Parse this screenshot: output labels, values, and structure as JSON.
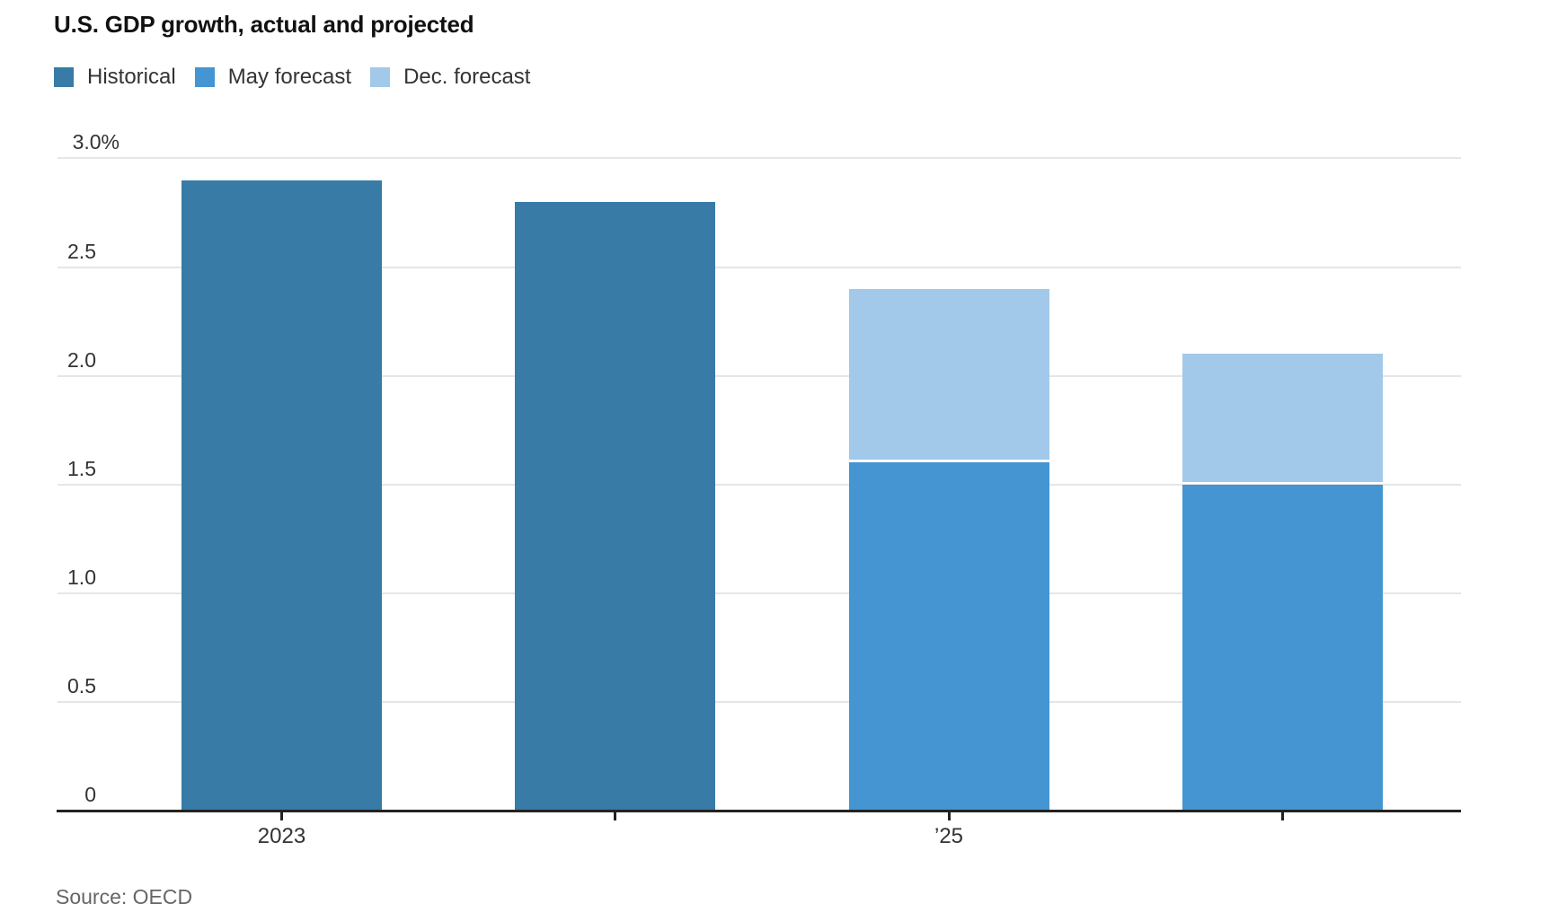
{
  "chart_data": {
    "type": "bar",
    "title": "U.S. GDP growth, actual and projected",
    "source": "Source: OECD",
    "y_unit": "%",
    "ylim": [
      0,
      3.0
    ],
    "y_ticks": [
      0,
      0.5,
      1.0,
      1.5,
      2.0,
      2.5,
      3.0
    ],
    "y_tick_labels": [
      "0",
      "0.5",
      "1.0",
      "1.5",
      "2.0",
      "2.5",
      "3.0%"
    ],
    "x_tick_labels": [
      "2023",
      "",
      "’25",
      ""
    ],
    "grid": true,
    "legend_position": "top",
    "series": [
      {
        "name": "Historical",
        "color": "#377BA6",
        "values": [
          2.9,
          2.8,
          null,
          null
        ]
      },
      {
        "name": "May forecast",
        "color": "#4495D2",
        "values": [
          null,
          null,
          1.6,
          1.5
        ]
      },
      {
        "name": "Dec. forecast",
        "color": "#A2C9E9",
        "values": [
          null,
          null,
          2.4,
          2.1
        ]
      }
    ],
    "note_dec_forecast_is_total_height": true
  },
  "colors": {
    "grid": "#E6E6E6",
    "axis": "#222222",
    "tick_label": "#333333",
    "source_text": "#666666",
    "separator": "#FFFFFF"
  }
}
